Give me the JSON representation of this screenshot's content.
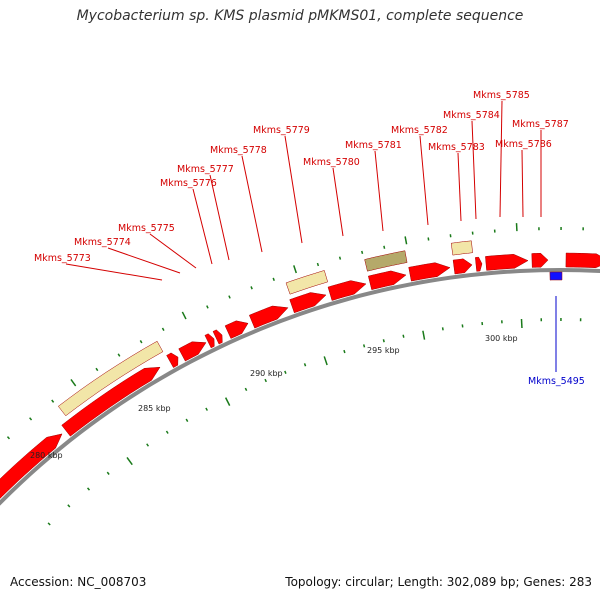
{
  "title": "Mycobacterium sp. KMS plasmid pMKMS01, complete sequence",
  "footer": {
    "accession": "Accession: NC_008703",
    "summary": "Topology: circular; Length: 302,089 bp; Genes: 283"
  },
  "colors": {
    "forward_gene": "#ff0000",
    "reverse_gene": "#1010ff",
    "forward_label": "#d40000",
    "reverse_label": "#0000cc",
    "feature_light": "#f2e6a8",
    "feature_dark": "#b5a96a",
    "gc_tick": "#1a7a1a",
    "backbone": "#888888"
  },
  "scale_labels": [
    "280 kbp",
    "285 kbp",
    "290 kbp",
    "295 kbp",
    "300 kbp"
  ],
  "forward_gene_labels": [
    "Mkms_5773",
    "Mkms_5774",
    "Mkms_5775",
    "Mkms_5776",
    "Mkms_5777",
    "Mkms_5778",
    "Mkms_5779",
    "Mkms_5780",
    "Mkms_5781",
    "Mkms_5782",
    "Mkms_5783",
    "Mkms_5784",
    "Mkms_5785",
    "Mkms_5786",
    "Mkms_5787"
  ],
  "reverse_gene_labels": [
    "Mkms_5495"
  ]
}
